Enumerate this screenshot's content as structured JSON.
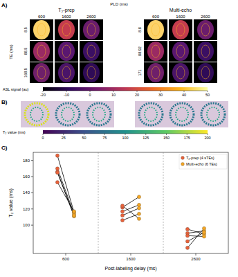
{
  "figure": {
    "panel_labels": [
      "A)",
      "B)",
      "C)"
    ],
    "titles": [
      "T₂-prep",
      "Multi-echo"
    ],
    "pld_axis_label": "PLD (ms)",
    "pld_values": [
      "600",
      "1600",
      "2600"
    ],
    "te_axis_label": "TE (ms)",
    "te_left": [
      "8.5",
      "88.5",
      "168.5"
    ],
    "te_right": [
      "8.8",
      "88.92",
      "171"
    ],
    "asl_colorbar": {
      "label": "ASL signal (au)",
      "range": [
        -20,
        50
      ],
      "ticks": [
        -20,
        -10,
        0,
        10,
        20,
        30,
        40,
        50
      ]
    },
    "t2_colorbar": {
      "label": "T₂ value (ms)",
      "range": [
        0,
        200
      ],
      "ticks": [
        0,
        25,
        50,
        75,
        100,
        125,
        150,
        175,
        200
      ]
    }
  },
  "chart_data": {
    "type": "scatter",
    "x_label": "Post-labeling delay (ms)",
    "y_label": "T₂ value (ms)",
    "categories": [
      "600",
      "1600",
      "2600"
    ],
    "ylim": [
      65,
      190
    ],
    "yticks": [
      100,
      120,
      140,
      160,
      180
    ],
    "grid": false,
    "legend": "upper right",
    "series": [
      {
        "name": "T₂-prep (4 sTEs)",
        "color": "#e8623a",
        "marker": "circle",
        "values": [
          [
            186,
            170,
            166,
            153,
            165
          ],
          [
            122,
            117,
            124,
            106,
            112
          ],
          [
            90,
            95,
            72,
            87,
            80
          ]
        ]
      },
      {
        "name": "Multi-echo (6 TEs)",
        "color": "#f5a623",
        "marker": "circle",
        "values": [
          [
            116,
            114,
            111,
            117,
            112
          ],
          [
            135,
            125,
            108,
            114,
            121
          ],
          [
            93,
            89,
            96,
            86,
            91
          ]
        ]
      }
    ]
  }
}
